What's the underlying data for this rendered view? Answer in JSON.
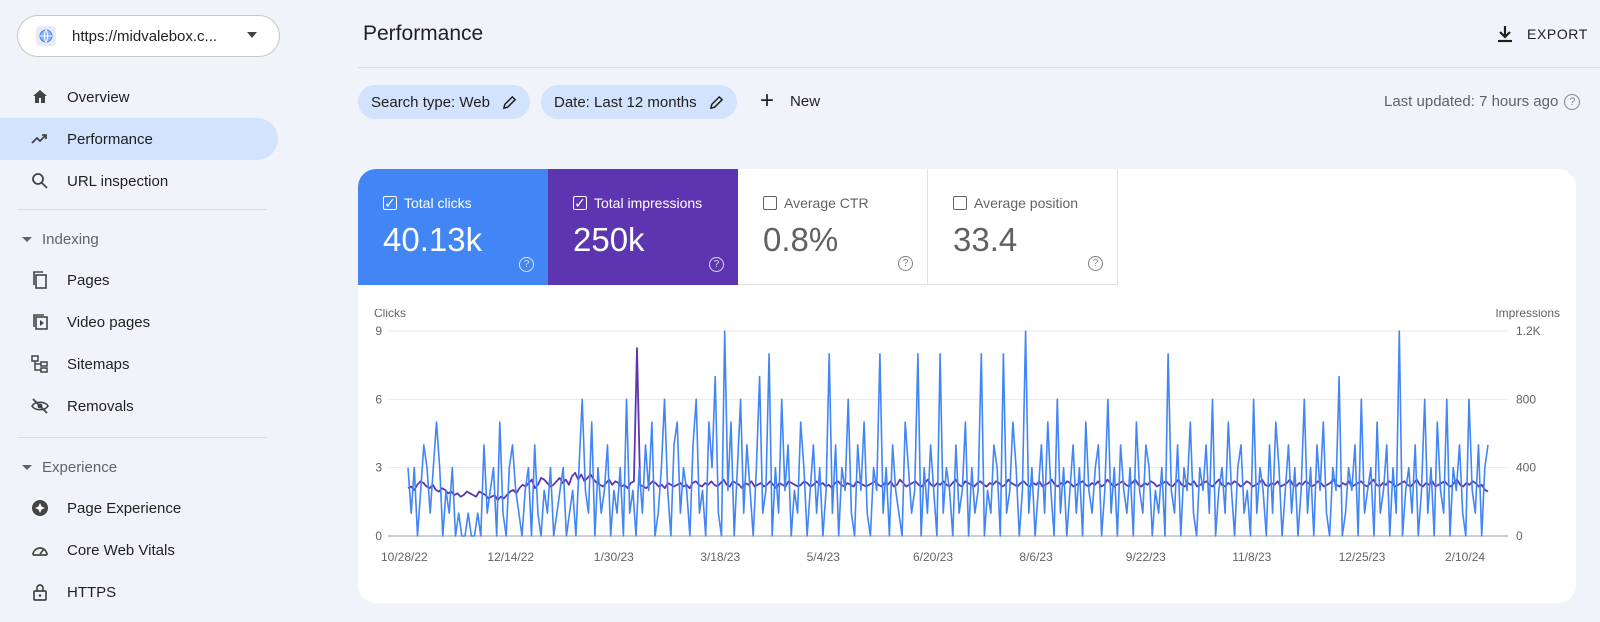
{
  "sidebar": {
    "property": "https://midvalebox.c...",
    "items": [
      {
        "label": "Overview"
      },
      {
        "label": "Performance"
      },
      {
        "label": "URL inspection"
      }
    ],
    "indexing": {
      "title": "Indexing",
      "items": [
        {
          "label": "Pages"
        },
        {
          "label": "Video pages"
        },
        {
          "label": "Sitemaps"
        },
        {
          "label": "Removals"
        }
      ]
    },
    "experience": {
      "title": "Experience",
      "items": [
        {
          "label": "Page Experience"
        },
        {
          "label": "Core Web Vitals"
        },
        {
          "label": "HTTPS"
        }
      ]
    }
  },
  "header": {
    "title": "Performance",
    "export_label": "EXPORT"
  },
  "filters": {
    "search_type": "Search type: Web",
    "date": "Date: Last 12 months",
    "new_label": "New",
    "last_updated": "Last updated: 7 hours ago"
  },
  "metrics": [
    {
      "label": "Total clicks",
      "value": "40.13k",
      "checked": true
    },
    {
      "label": "Total impressions",
      "value": "250k",
      "checked": true
    },
    {
      "label": "Average CTR",
      "value": "0.8%",
      "checked": false
    },
    {
      "label": "Average position",
      "value": "33.4",
      "checked": false
    }
  ],
  "colors": {
    "clicks": "#4285f4",
    "impressions": "#5e35b1"
  },
  "chart_data": {
    "type": "line",
    "ylabel_left": "Clicks",
    "ylabel_right": "Impressions",
    "y_left_ticks": [
      "0",
      "3",
      "6",
      "9"
    ],
    "y_right_ticks": [
      "0",
      "400",
      "800",
      "1.2K"
    ],
    "ylim_left": [
      0,
      9
    ],
    "ylim_right": [
      0,
      1200
    ],
    "x_tick_labels": [
      "10/28/22",
      "12/14/22",
      "1/30/23",
      "3/18/23",
      "5/4/23",
      "6/20/23",
      "8/6/23",
      "9/22/23",
      "11/8/23",
      "12/25/23",
      "2/10/24"
    ],
    "series": [
      {
        "name": "Clicks",
        "axis": "left",
        "values": [
          3,
          1,
          3,
          0,
          2,
          4,
          3,
          1,
          3,
          5,
          3,
          0,
          2,
          1,
          3,
          0,
          1,
          0,
          0,
          1,
          0,
          0,
          1,
          0,
          4,
          1,
          2,
          3,
          0,
          5,
          1,
          0,
          3,
          4,
          2,
          1,
          0,
          2,
          3,
          0,
          4,
          1,
          0,
          2,
          1,
          3,
          0,
          1,
          2,
          3,
          0,
          1,
          2,
          0,
          3,
          6,
          2,
          1,
          5,
          0,
          3,
          1,
          2,
          4,
          0,
          2,
          1,
          3,
          0,
          6,
          1,
          2,
          0,
          3,
          1,
          4,
          2,
          5,
          0,
          1,
          3,
          6,
          2,
          0,
          4,
          5,
          1,
          3,
          2,
          0,
          4,
          6,
          1,
          2,
          0,
          5,
          3,
          7,
          1,
          0,
          9,
          2,
          5,
          0,
          3,
          6,
          1,
          4,
          2,
          0,
          3,
          7,
          1,
          2,
          8,
          0,
          3,
          1,
          6,
          2,
          4,
          0,
          2,
          1,
          5,
          3,
          0,
          2,
          4,
          1,
          3,
          0,
          2,
          8,
          1,
          4,
          0,
          3,
          2,
          6,
          1,
          0,
          4,
          2,
          5,
          1,
          0,
          3,
          2,
          8,
          1,
          3,
          0,
          4,
          2,
          1,
          0,
          5,
          3,
          1,
          2,
          8,
          0,
          3,
          1,
          4,
          2,
          0,
          8,
          1,
          3,
          2,
          0,
          4,
          1,
          2,
          5,
          0,
          3,
          1,
          2,
          8,
          0,
          2,
          1,
          4,
          3,
          0,
          8,
          1,
          2,
          5,
          3,
          0,
          2,
          9,
          1,
          3,
          0,
          2,
          4,
          1,
          5,
          2,
          0,
          6,
          1,
          3,
          0,
          2,
          4,
          1,
          3,
          0,
          5,
          2,
          1,
          3,
          4,
          0,
          2,
          6,
          1,
          3,
          0,
          4,
          2,
          1,
          3,
          0,
          5,
          2,
          1,
          4,
          3,
          0,
          2,
          1,
          3,
          0,
          8,
          2,
          1,
          4,
          0,
          3,
          2,
          5,
          1,
          0,
          3,
          2,
          4,
          1,
          6,
          0,
          2,
          3,
          1,
          5,
          2,
          0,
          3,
          4,
          1,
          2,
          0,
          6,
          1,
          3,
          2,
          0,
          4,
          1,
          5,
          3,
          0,
          2,
          4,
          1,
          3,
          0,
          2,
          6,
          1,
          3,
          0,
          4,
          2,
          5,
          1,
          0,
          3,
          2,
          7,
          0,
          1,
          3,
          2,
          4,
          0,
          6,
          1,
          2,
          3,
          0,
          5,
          1,
          2,
          4,
          0,
          3,
          1,
          9,
          0,
          2,
          3,
          1,
          4,
          0,
          2,
          6,
          1,
          3,
          0,
          5,
          2,
          1,
          6,
          0,
          3,
          2,
          4,
          1,
          0,
          6,
          2,
          1,
          4,
          0,
          3,
          4
        ]
      },
      {
        "name": "Impressions",
        "axis": "right",
        "values": [
          280,
          290,
          270,
          300,
          320,
          310,
          290,
          280,
          300,
          270,
          260,
          280,
          270,
          250,
          260,
          240,
          250,
          230,
          240,
          260,
          250,
          240,
          230,
          260,
          250,
          240,
          220,
          230,
          240,
          210,
          230,
          220,
          240,
          260,
          270,
          250,
          280,
          300,
          290,
          310,
          330,
          280,
          300,
          340,
          330,
          310,
          290,
          300,
          320,
          340,
          310,
          330,
          300,
          350,
          370,
          330,
          360,
          320,
          340,
          360,
          330,
          310,
          300,
          290,
          310,
          330,
          300,
          320,
          310,
          290,
          300,
          280,
          310,
          320,
          1100,
          300,
          290,
          280,
          300,
          320,
          310,
          290,
          300,
          280,
          310,
          300,
          290,
          300,
          310,
          290,
          300,
          280,
          310,
          320,
          300,
          290,
          310,
          300,
          320,
          300,
          290,
          310,
          330,
          300,
          290,
          320,
          310,
          300,
          280,
          310,
          300,
          320,
          290,
          300,
          310,
          290,
          300,
          320,
          300,
          280,
          310,
          300,
          290,
          320,
          310,
          300,
          290,
          300,
          320,
          310,
          290,
          300,
          320,
          300,
          310,
          290,
          300,
          280,
          310,
          320,
          300,
          290,
          310,
          300,
          290,
          320,
          310,
          300,
          290,
          300,
          310,
          320,
          300,
          290,
          310,
          300,
          320,
          290,
          300,
          330,
          310,
          290,
          300,
          310,
          320,
          300,
          290,
          310,
          330,
          300,
          290,
          310,
          300,
          320,
          300,
          290,
          310,
          330,
          300,
          290,
          320,
          310,
          300,
          290,
          310,
          320,
          300,
          290,
          310,
          300,
          320,
          310,
          290,
          300,
          330,
          310,
          300,
          290,
          310,
          320,
          300,
          290,
          310,
          300,
          320,
          290,
          300,
          310,
          330,
          300,
          290,
          310,
          300,
          320,
          310,
          290,
          300,
          310,
          320,
          300,
          290,
          310,
          300,
          320,
          290,
          300,
          330,
          310,
          290,
          300,
          310,
          320,
          300,
          290,
          310,
          330,
          300,
          290,
          310,
          300,
          320,
          310,
          290,
          300,
          310,
          320,
          300,
          290,
          310,
          330,
          300,
          290,
          310,
          300,
          320,
          290,
          300,
          310,
          320,
          300,
          290,
          310,
          330,
          300,
          290,
          310,
          300,
          320,
          310,
          290,
          300,
          320,
          310,
          290,
          300,
          310,
          330,
          300,
          290,
          310,
          300,
          320,
          290,
          300,
          310,
          330,
          300,
          290,
          310,
          300,
          320,
          310,
          290,
          300,
          320,
          310,
          290,
          300,
          310,
          330,
          300,
          290,
          310,
          300,
          320,
          290,
          300,
          310,
          320,
          300,
          290,
          310,
          330,
          300,
          290,
          310,
          300,
          320,
          310,
          290,
          300,
          310,
          320,
          300,
          290,
          310,
          330,
          300,
          290,
          310,
          300,
          320,
          290,
          300,
          310,
          320,
          300,
          290,
          310,
          330,
          300,
          290,
          310,
          300,
          320,
          310,
          290,
          300,
          270,
          260
        ]
      }
    ],
    "grid": true,
    "legend": "none"
  }
}
